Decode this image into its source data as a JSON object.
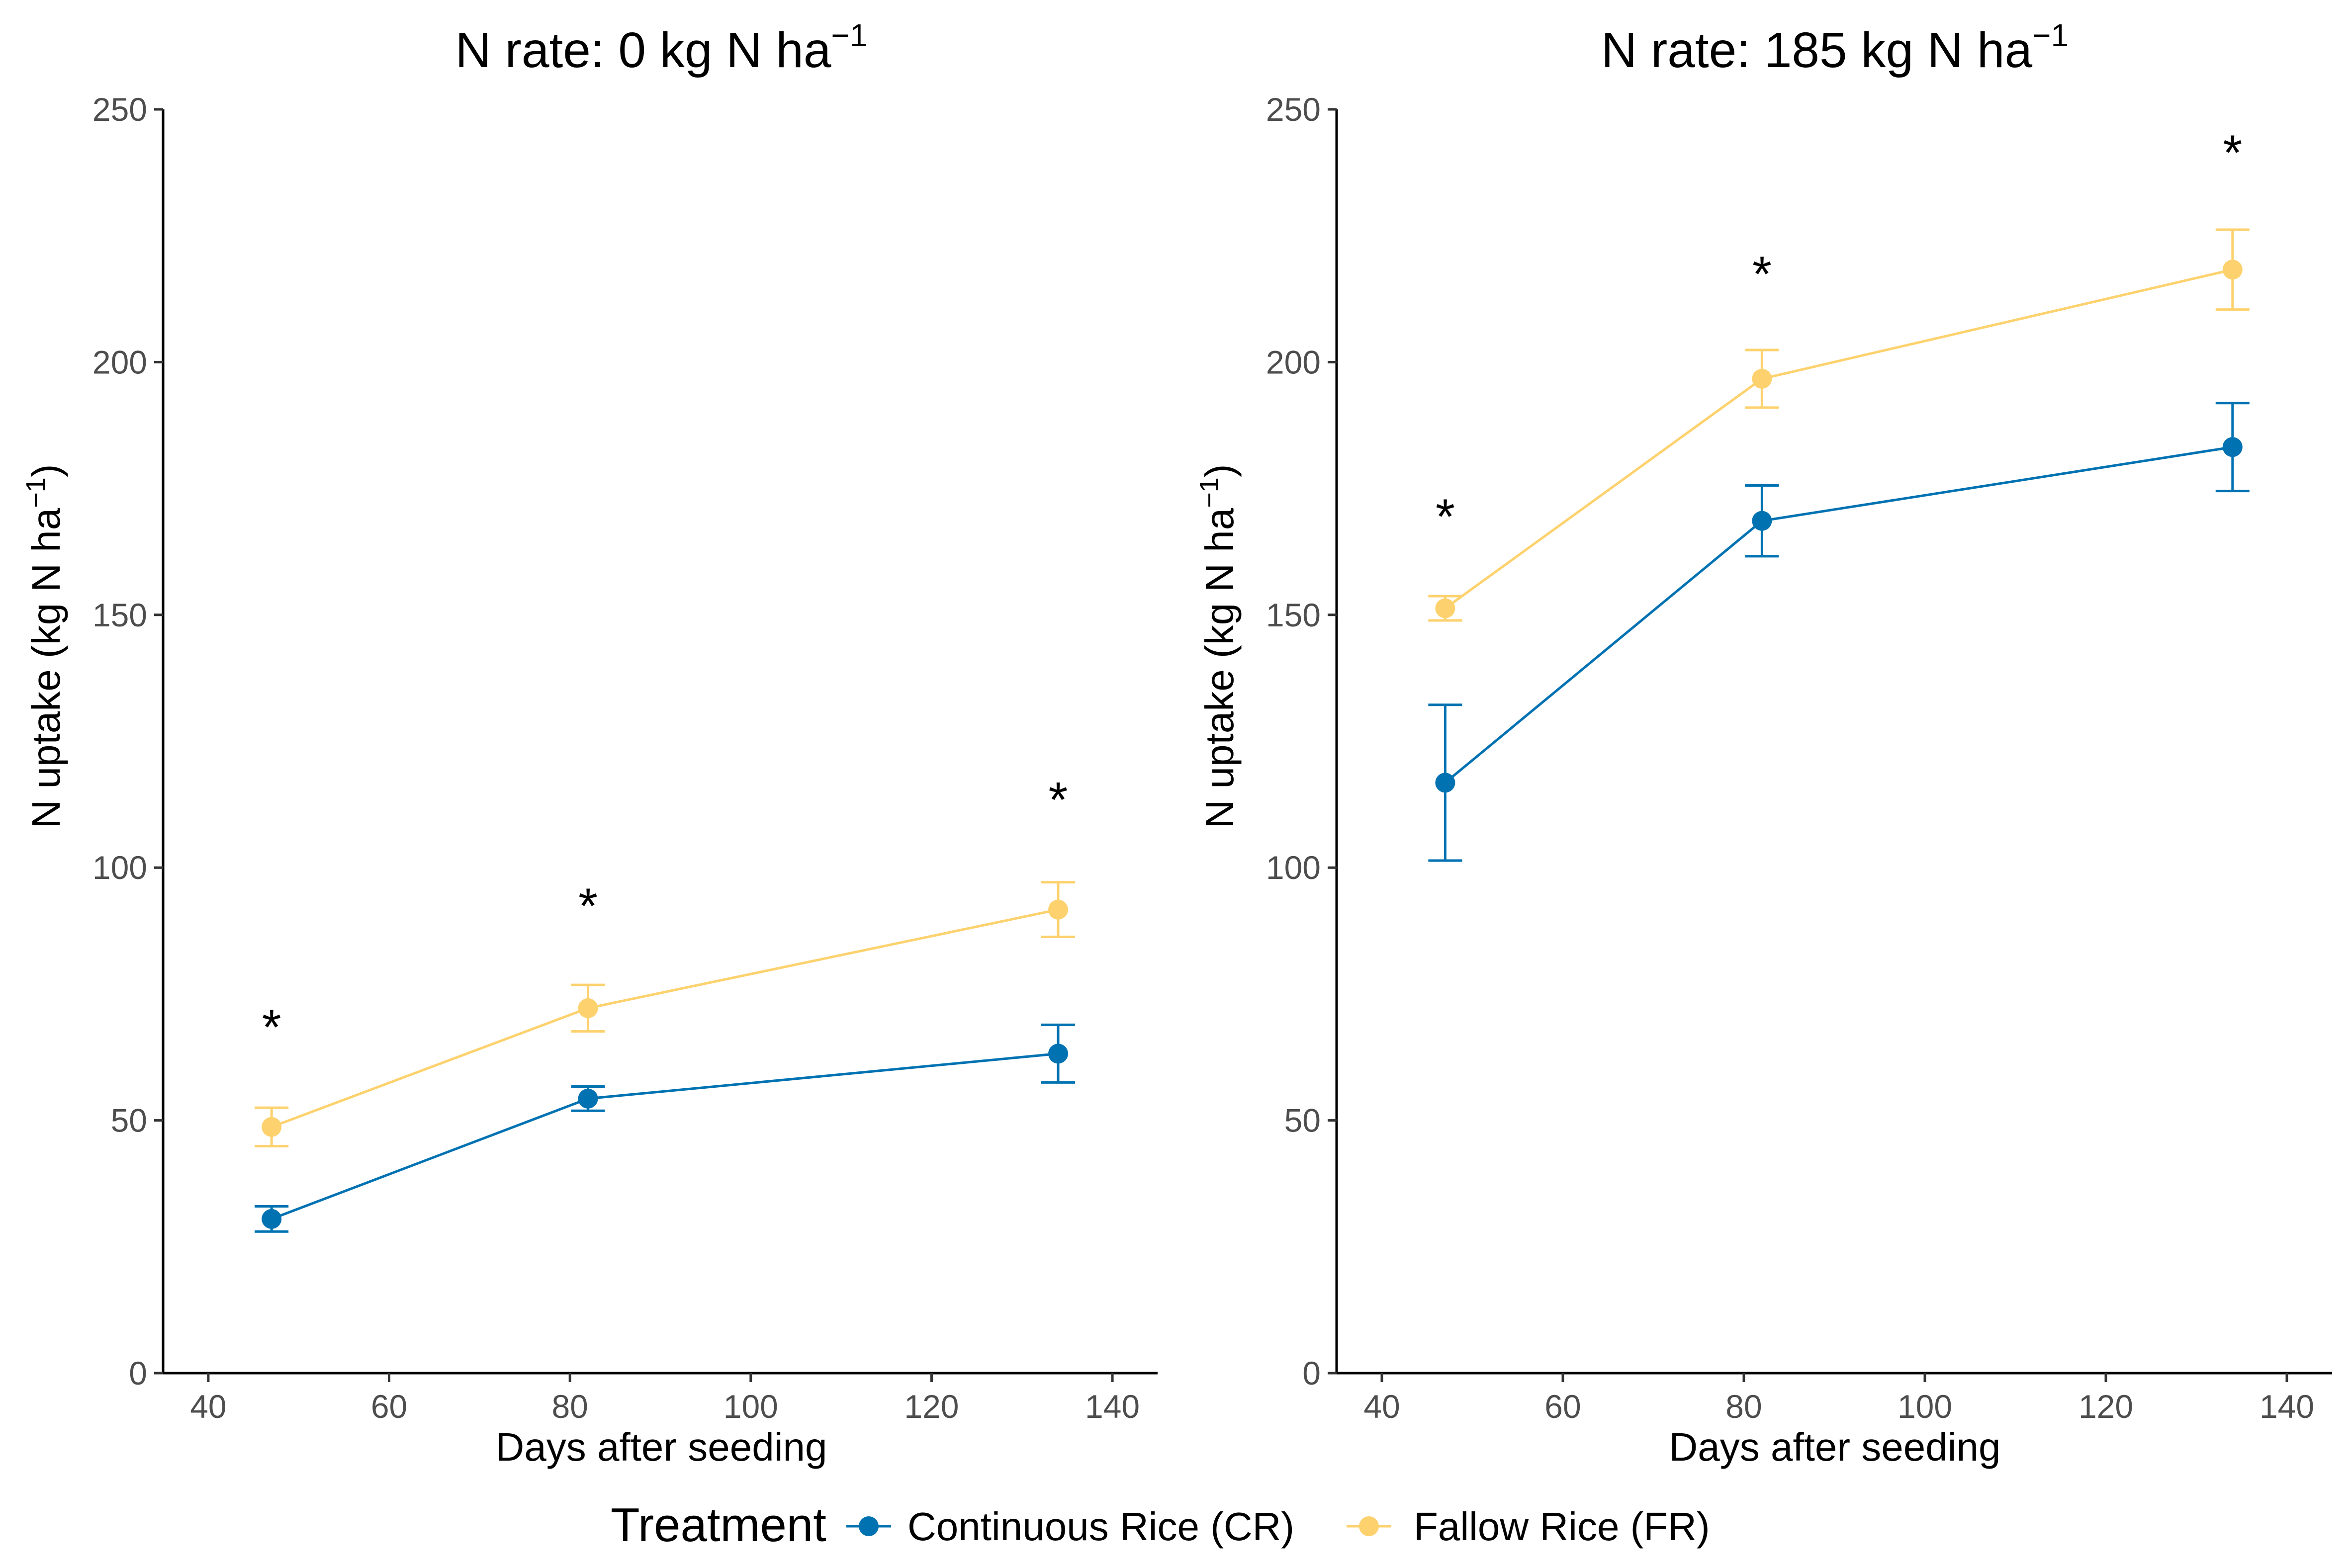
{
  "chart_data": [
    {
      "type": "line",
      "title": "N rate: 0 kg N ha",
      "title_superscript": "−1",
      "xlabel": "Days after seeding",
      "ylabel": "N uptake (kg N ha",
      "ylabel_superscript": "−1",
      "ylabel_close": ")",
      "xlim": [
        35,
        145
      ],
      "ylim": [
        0,
        250
      ],
      "xticks": [
        "40",
        "60",
        "80",
        "100",
        "120",
        "140"
      ],
      "yticks": [
        "0",
        "50",
        "100",
        "150",
        "200",
        "250"
      ],
      "grid": false,
      "x": [
        47,
        82,
        134
      ],
      "series": [
        {
          "name": "Continuous Rice (CR)",
          "color": "#0072B2",
          "values": [
            30.5,
            54.3,
            63.2
          ],
          "error": [
            2.5,
            2.4,
            5.7
          ]
        },
        {
          "name": "Fallow Rice (FR)",
          "color": "#FDD26E",
          "values": [
            48.7,
            72.2,
            91.7
          ],
          "error": [
            3.8,
            4.6,
            5.4
          ]
        }
      ],
      "annotations": [
        {
          "text": "*",
          "x": 47,
          "y": 69
        },
        {
          "text": "*",
          "x": 82,
          "y": 93
        },
        {
          "text": "*",
          "x": 134,
          "y": 114
        }
      ]
    },
    {
      "type": "line",
      "title": "N rate: 185 kg N ha",
      "title_superscript": "−1",
      "xlabel": "Days after seeding",
      "ylabel": "N uptake (kg N ha",
      "ylabel_superscript": "−1",
      "ylabel_close": ")",
      "xlim": [
        35,
        145
      ],
      "ylim": [
        0,
        250
      ],
      "xticks": [
        "40",
        "60",
        "80",
        "100",
        "120",
        "140"
      ],
      "yticks": [
        "0",
        "50",
        "100",
        "150",
        "200",
        "250"
      ],
      "grid": false,
      "x": [
        47,
        82,
        134
      ],
      "series": [
        {
          "name": "Continuous Rice (CR)",
          "color": "#0072B2",
          "values": [
            116.8,
            168.6,
            183.2
          ],
          "error": [
            15.4,
            7.0,
            8.7
          ]
        },
        {
          "name": "Fallow Rice (FR)",
          "color": "#FDD26E",
          "values": [
            151.3,
            196.7,
            218.3
          ],
          "error": [
            2.4,
            5.7,
            7.9
          ]
        }
      ],
      "annotations": [
        {
          "text": "*",
          "x": 47,
          "y": 170
        },
        {
          "text": "*",
          "x": 82,
          "y": 218
        },
        {
          "text": "*",
          "x": 134,
          "y": 242
        }
      ]
    }
  ],
  "legend": {
    "title": "Treatment",
    "position": "bottom",
    "items": [
      {
        "label": "Continuous Rice (CR)",
        "color": "#0072B2"
      },
      {
        "label": "Fallow Rice (FR)",
        "color": "#FDD26E"
      }
    ]
  }
}
